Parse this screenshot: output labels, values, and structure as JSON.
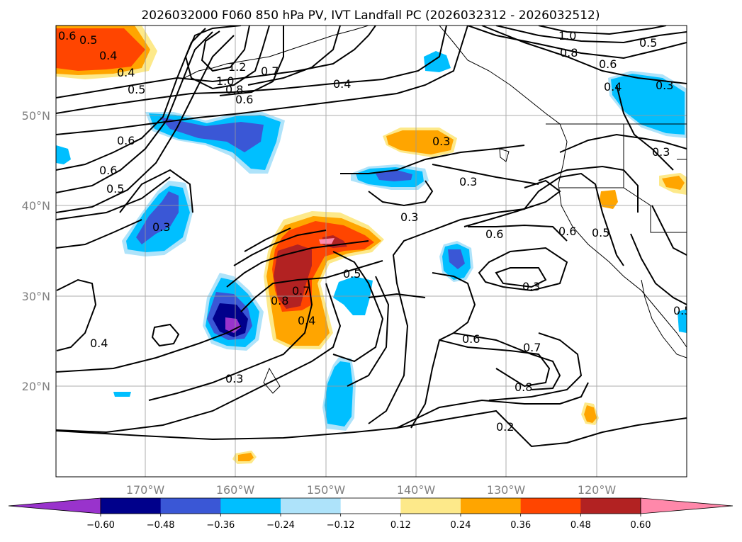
{
  "title": "2026032000 F060 850 hPa PV, IVT Landfall PC (2026032312 - 2026032512)",
  "lat_labels": [
    "50°N",
    "40°N",
    "30°N",
    "20°N"
  ],
  "lon_labels": [
    "170°W",
    "160°W",
    "150°W",
    "140°W",
    "130°W",
    "120°W"
  ],
  "colorbar": {
    "colors": [
      "#9933cc",
      "#00008b",
      "#3a57d6",
      "#00bfff",
      "#aee3fa",
      "#ffffff",
      "#fde98a",
      "#ffa500",
      "#ff4500",
      "#b22222",
      "#ff88aa"
    ],
    "tick_labels": [
      "−0.60",
      "−0.48",
      "−0.36",
      "−0.24",
      "−0.12",
      "0.12",
      "0.24",
      "0.36",
      "0.48",
      "0.60"
    ]
  },
  "contour_labels": [
    {
      "text": "0.6"
    },
    {
      "text": "0.5"
    },
    {
      "text": "0.4"
    },
    {
      "text": "0.4"
    },
    {
      "text": "0.5"
    },
    {
      "text": "1.2"
    },
    {
      "text": "1.0"
    },
    {
      "text": "0.8"
    },
    {
      "text": "0.6"
    },
    {
      "text": "0.7"
    },
    {
      "text": "0.4"
    },
    {
      "text": "1.0"
    },
    {
      "text": "0.8"
    },
    {
      "text": "0.5"
    },
    {
      "text": "0.6"
    },
    {
      "text": "0.4"
    },
    {
      "text": "0.3"
    },
    {
      "text": "0.6"
    },
    {
      "text": "0.6"
    },
    {
      "text": "0.5"
    },
    {
      "text": "0.3"
    },
    {
      "text": "0.3"
    },
    {
      "text": "0.3"
    },
    {
      "text": "0.6"
    },
    {
      "text": "0.6"
    },
    {
      "text": "0.5"
    },
    {
      "text": "0.5"
    },
    {
      "text": "0.7"
    },
    {
      "text": "0.8"
    },
    {
      "text": "0.4"
    },
    {
      "text": "0.3"
    },
    {
      "text": "0.6"
    },
    {
      "text": "0.7"
    },
    {
      "text": "0.8"
    },
    {
      "text": "0.2"
    },
    {
      "text": "0.3"
    },
    {
      "text": "0.4"
    },
    {
      "text": "0.3"
    },
    {
      "text": "0.3"
    },
    {
      "text": "0.5"
    }
  ]
}
